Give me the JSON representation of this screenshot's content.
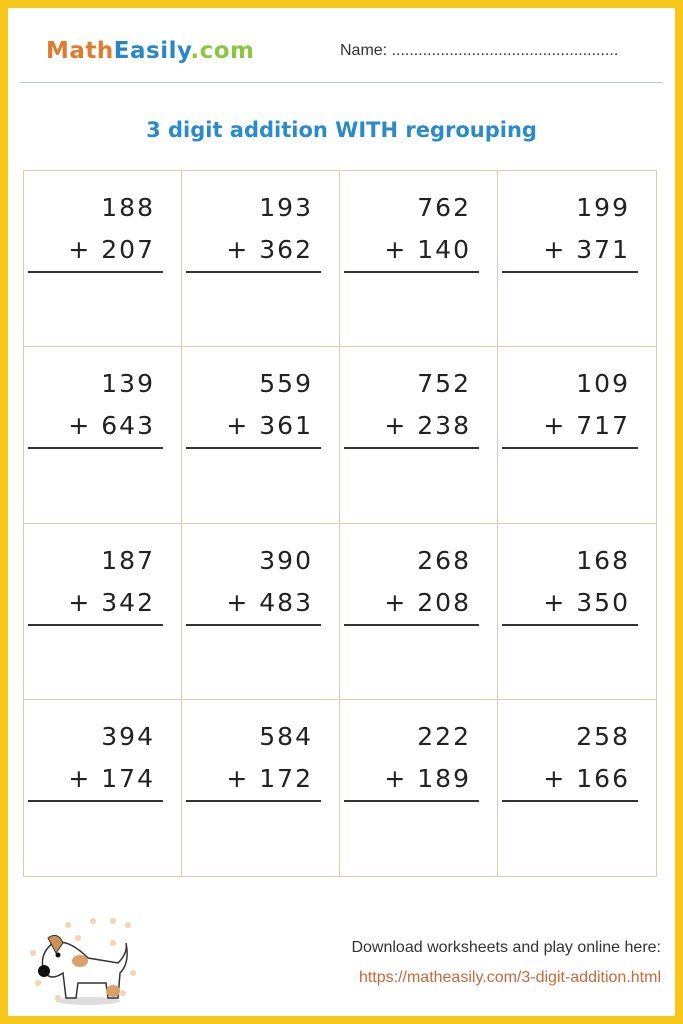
{
  "header": {
    "logo_math": "Math",
    "logo_easily": "Easily",
    "logo_com": ".com",
    "name_label": "Name: ..................................................."
  },
  "title": "3 digit addition WITH regrouping",
  "problems": [
    {
      "top": "188",
      "bottom": "+ 207"
    },
    {
      "top": "193",
      "bottom": "+ 362"
    },
    {
      "top": "762",
      "bottom": "+ 140"
    },
    {
      "top": "199",
      "bottom": "+ 371"
    },
    {
      "top": "139",
      "bottom": "+ 643"
    },
    {
      "top": "559",
      "bottom": "+ 361"
    },
    {
      "top": "752",
      "bottom": "+ 238"
    },
    {
      "top": "109",
      "bottom": "+ 717"
    },
    {
      "top": "187",
      "bottom": "+ 342"
    },
    {
      "top": "390",
      "bottom": "+ 483"
    },
    {
      "top": "268",
      "bottom": "+ 208"
    },
    {
      "top": "168",
      "bottom": "+ 350"
    },
    {
      "top": "394",
      "bottom": "+ 174"
    },
    {
      "top": "584",
      "bottom": "+ 172"
    },
    {
      "top": "222",
      "bottom": "+ 189"
    },
    {
      "top": "258",
      "bottom": "+ 166"
    }
  ],
  "footer": {
    "download_text": "Download worksheets and play online here:",
    "url": "https://matheasily.com/3-digit-addition.html"
  },
  "colors": {
    "border": "#f6c719",
    "title": "#2a8bc8",
    "logo_math": "#e07b2e",
    "logo_easily": "#2a86c8",
    "logo_com": "#8cc63f",
    "url": "#c46a3a"
  }
}
